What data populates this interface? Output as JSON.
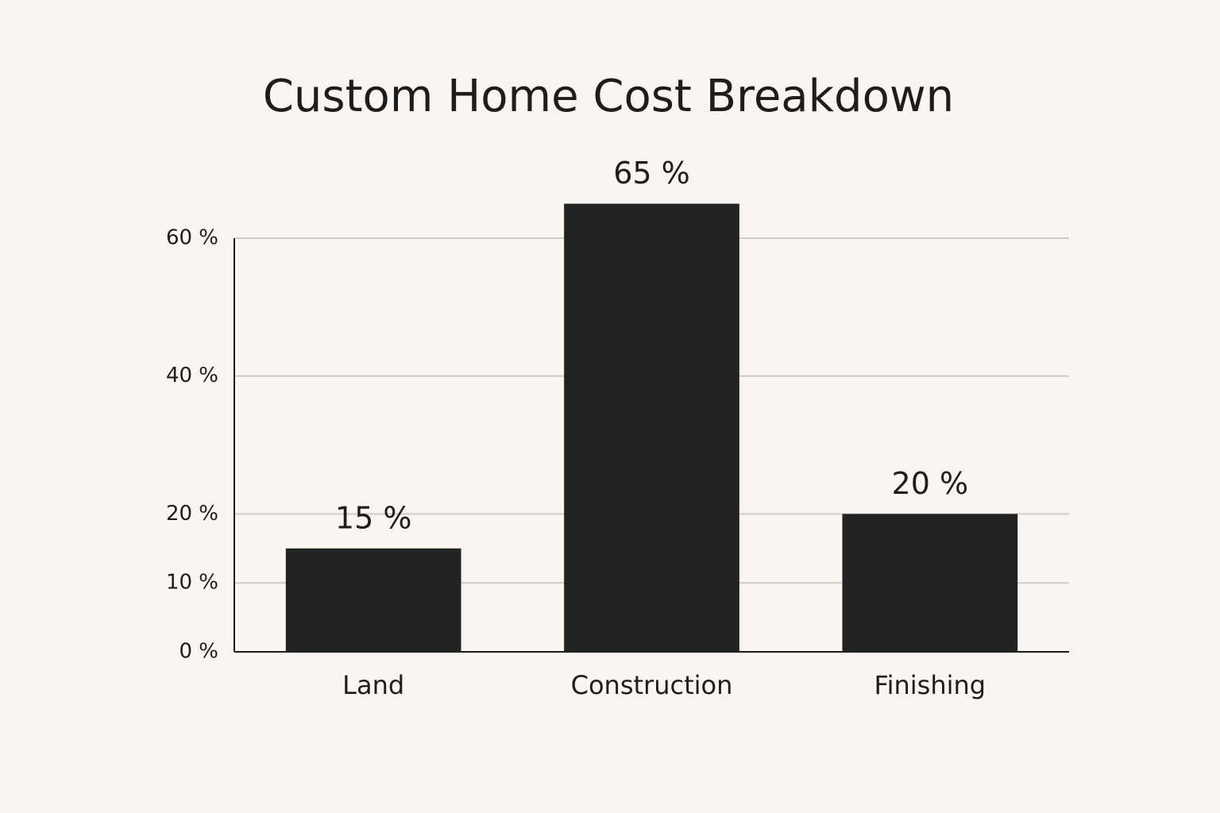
{
  "chart_data": {
    "type": "bar",
    "title": "Custom Home Cost Breakdown",
    "categories": [
      "Land",
      "Construction",
      "Finishing"
    ],
    "values": [
      15,
      65,
      20
    ],
    "value_labels": [
      "15 %",
      "65 %",
      "20 %"
    ],
    "color": "#222423",
    "ylim": [
      0,
      60
    ],
    "yticks": [
      {
        "value": 0,
        "label": "0 %"
      },
      {
        "value": 10,
        "label": "10 %"
      },
      {
        "value": 20,
        "label": "20 %"
      },
      {
        "value": 40,
        "label": "40 %"
      },
      {
        "value": 60,
        "label": "60 %"
      }
    ],
    "grid": true
  }
}
